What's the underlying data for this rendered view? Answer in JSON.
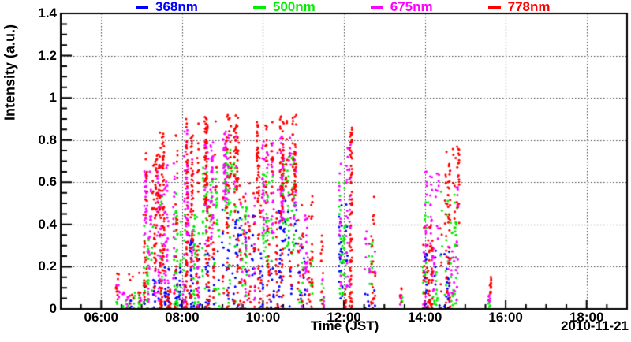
{
  "chart_data": {
    "type": "scatter",
    "title": "",
    "xlabel": "Time (JST)",
    "ylabel": "Intensity (a.u.)",
    "date_label": "2010-11-21",
    "x_range_hours": [
      5,
      19
    ],
    "ylim": [
      0,
      1.4
    ],
    "grid": "dotted",
    "legend_position": "top",
    "marker": "dot",
    "marker_size_px": 3,
    "x_ticks": [
      {
        "hour": 6,
        "label": "06:00"
      },
      {
        "hour": 8,
        "label": "08:00"
      },
      {
        "hour": 10,
        "label": "10:00"
      },
      {
        "hour": 12,
        "label": "12:00"
      },
      {
        "hour": 14,
        "label": "14:00"
      },
      {
        "hour": 16,
        "label": "16:00"
      },
      {
        "hour": 18,
        "label": "18:00"
      }
    ],
    "x_minor_step_hours": 0.5,
    "y_ticks": [
      {
        "value": 0,
        "label": "0"
      },
      {
        "value": 0.2,
        "label": "0.2"
      },
      {
        "value": 0.4,
        "label": "0.4"
      },
      {
        "value": 0.6,
        "label": "0.6"
      },
      {
        "value": 0.8,
        "label": "0.8"
      },
      {
        "value": 1,
        "label": "1"
      },
      {
        "value": 1.2,
        "label": "1.2"
      },
      {
        "value": 1.4,
        "label": "1.4"
      }
    ],
    "y_minor_step": 0.05,
    "series": [
      {
        "name": "368nm",
        "color": "#0000ff"
      },
      {
        "name": "500nm",
        "color": "#00ee00"
      },
      {
        "name": "675nm",
        "color": "#ff00ff"
      },
      {
        "name": "778nm",
        "color": "#ff0000"
      }
    ],
    "bursts": [
      {
        "t0": 6.35,
        "t1": 6.62,
        "series": {
          "778nm": [
            [
              0.04,
              0.17,
              10
            ]
          ],
          "675nm": [
            [
              0.03,
              0.13,
              8
            ]
          ],
          "500nm": [
            [
              0.0,
              0.04,
              6
            ]
          ]
        }
      },
      {
        "t0": 6.62,
        "t1": 7.02,
        "series": {
          "500nm": [
            [
              0.0,
              0.09,
              16
            ]
          ],
          "778nm": [
            [
              0.0,
              0.18,
              12
            ]
          ],
          "675nm": [
            [
              0.0,
              0.1,
              8
            ]
          ],
          "368nm": [
            [
              0.0,
              0.04,
              5
            ]
          ]
        }
      },
      {
        "t0": 7.05,
        "t1": 7.45,
        "series": {
          "778nm": [
            [
              0.45,
              0.74,
              55
            ],
            [
              0.02,
              0.45,
              45
            ]
          ],
          "675nm": [
            [
              0.35,
              0.66,
              45
            ],
            [
              0.02,
              0.35,
              28
            ]
          ],
          "500nm": [
            [
              0.0,
              0.4,
              38
            ]
          ],
          "368nm": [
            [
              0.0,
              0.14,
              22
            ]
          ]
        }
      },
      {
        "t0": 7.45,
        "t1": 7.97,
        "series": {
          "778nm": [
            [
              0.1,
              0.84,
              85
            ],
            [
              0.0,
              0.1,
              40
            ]
          ],
          "675nm": [
            [
              0.05,
              0.7,
              70
            ]
          ],
          "500nm": [
            [
              0.0,
              0.55,
              55
            ]
          ],
          "368nm": [
            [
              0.0,
              0.2,
              45
            ]
          ]
        }
      },
      {
        "t0": 8.02,
        "t1": 8.45,
        "series": {
          "778nm": [
            [
              0.3,
              0.9,
              75
            ],
            [
              0.0,
              0.3,
              55
            ]
          ],
          "675nm": [
            [
              0.2,
              0.86,
              65
            ],
            [
              0.0,
              0.2,
              28
            ]
          ],
          "500nm": [
            [
              0.0,
              0.45,
              45
            ]
          ],
          "368nm": [
            [
              0.0,
              0.35,
              35
            ]
          ]
        }
      },
      {
        "t0": 8.5,
        "t1": 8.92,
        "series": {
          "778nm": [
            [
              0.5,
              0.91,
              65
            ],
            [
              0.0,
              0.5,
              45
            ]
          ],
          "675nm": [
            [
              0.3,
              0.8,
              55
            ]
          ],
          "500nm": [
            [
              0.4,
              0.68,
              45
            ],
            [
              0.0,
              0.4,
              22
            ]
          ],
          "368nm": [
            [
              0.0,
              0.3,
              26
            ]
          ]
        }
      },
      {
        "t0": 8.97,
        "t1": 9.42,
        "series": {
          "778nm": [
            [
              0.55,
              0.92,
              65
            ],
            [
              0.0,
              0.55,
              38
            ]
          ],
          "675nm": [
            [
              0.5,
              0.85,
              55
            ]
          ],
          "500nm": [
            [
              0.45,
              0.76,
              45
            ],
            [
              0.0,
              0.45,
              18
            ]
          ],
          "368nm": [
            [
              0.2,
              0.47,
              26
            ],
            [
              0.0,
              0.2,
              14
            ]
          ]
        }
      },
      {
        "t0": 9.42,
        "t1": 9.8,
        "series": {
          "778nm": [
            [
              0.0,
              0.62,
              48
            ]
          ],
          "675nm": [
            [
              0.0,
              0.55,
              36
            ]
          ],
          "500nm": [
            [
              0.0,
              0.5,
              32
            ]
          ],
          "368nm": [
            [
              0.15,
              0.45,
              26
            ]
          ]
        }
      },
      {
        "t0": 9.85,
        "t1": 10.28,
        "series": {
          "778nm": [
            [
              0.5,
              0.89,
              65
            ],
            [
              0.0,
              0.5,
              42
            ]
          ],
          "675nm": [
            [
              0.35,
              0.8,
              55
            ]
          ],
          "500nm": [
            [
              0.2,
              0.65,
              42
            ]
          ],
          "368nm": [
            [
              0.0,
              0.3,
              26
            ]
          ]
        }
      },
      {
        "t0": 10.32,
        "t1": 10.88,
        "series": {
          "778nm": [
            [
              0.5,
              0.93,
              85
            ],
            [
              0.0,
              0.5,
              55
            ]
          ],
          "675nm": [
            [
              0.4,
              0.82,
              70
            ]
          ],
          "500nm": [
            [
              0.25,
              0.72,
              55
            ]
          ],
          "368nm": [
            [
              0.25,
              0.55,
              38
            ],
            [
              0.0,
              0.25,
              18
            ]
          ]
        }
      },
      {
        "t0": 10.9,
        "t1": 11.22,
        "series": {
          "778nm": [
            [
              0.0,
              0.55,
              38
            ]
          ],
          "675nm": [
            [
              0.0,
              0.45,
              28
            ]
          ],
          "500nm": [
            [
              0.0,
              0.4,
              22
            ]
          ],
          "368nm": [
            [
              0.0,
              0.3,
              14
            ]
          ]
        }
      },
      {
        "t0": 11.4,
        "t1": 11.58,
        "series": {
          "778nm": [
            [
              0.02,
              0.35,
              12
            ]
          ],
          "675nm": [
            [
              0.0,
              0.2,
              8
            ]
          ],
          "500nm": [
            [
              0.0,
              0.15,
              6
            ]
          ]
        }
      },
      {
        "t0": 11.88,
        "t1": 12.2,
        "series": {
          "778nm": [
            [
              0.1,
              0.87,
              65
            ],
            [
              0.0,
              0.1,
              22
            ]
          ],
          "675nm": [
            [
              0.1,
              0.78,
              50
            ]
          ],
          "500nm": [
            [
              0.05,
              0.6,
              36
            ]
          ],
          "368nm": [
            [
              0.05,
              0.5,
              32
            ]
          ]
        }
      },
      {
        "t0": 12.5,
        "t1": 12.78,
        "series": {
          "778nm": [
            [
              0.0,
              0.56,
              24
            ]
          ],
          "675nm": [
            [
              0.15,
              0.38,
              14
            ]
          ],
          "500nm": [
            [
              0.08,
              0.33,
              14
            ]
          ],
          "368nm": [
            [
              0.0,
              0.1,
              8
            ]
          ]
        }
      },
      {
        "t0": 13.38,
        "t1": 13.52,
        "series": {
          "778nm": [
            [
              0.03,
              0.1,
              5
            ]
          ],
          "675nm": [
            [
              0.02,
              0.08,
              4
            ]
          ],
          "500nm": [
            [
              0.02,
              0.06,
              3
            ]
          ]
        }
      },
      {
        "t0": 13.95,
        "t1": 14.85,
        "series": {
          "778nm": [
            [
              0.4,
              0.77,
              55
            ],
            [
              0.0,
              0.4,
              85
            ]
          ],
          "675nm": [
            [
              0.3,
              0.66,
              48
            ],
            [
              0.0,
              0.3,
              55
            ]
          ],
          "500nm": [
            [
              0.2,
              0.56,
              38
            ],
            [
              0.0,
              0.2,
              38
            ]
          ],
          "368nm": [
            [
              0.0,
              0.28,
              42
            ]
          ]
        }
      },
      {
        "t0": 15.54,
        "t1": 15.64,
        "series": {
          "778nm": [
            [
              0.07,
              0.155,
              12
            ]
          ],
          "675nm": [
            [
              0.03,
              0.09,
              9
            ]
          ],
          "500nm": [
            [
              0.01,
              0.03,
              4
            ]
          ]
        }
      }
    ]
  }
}
